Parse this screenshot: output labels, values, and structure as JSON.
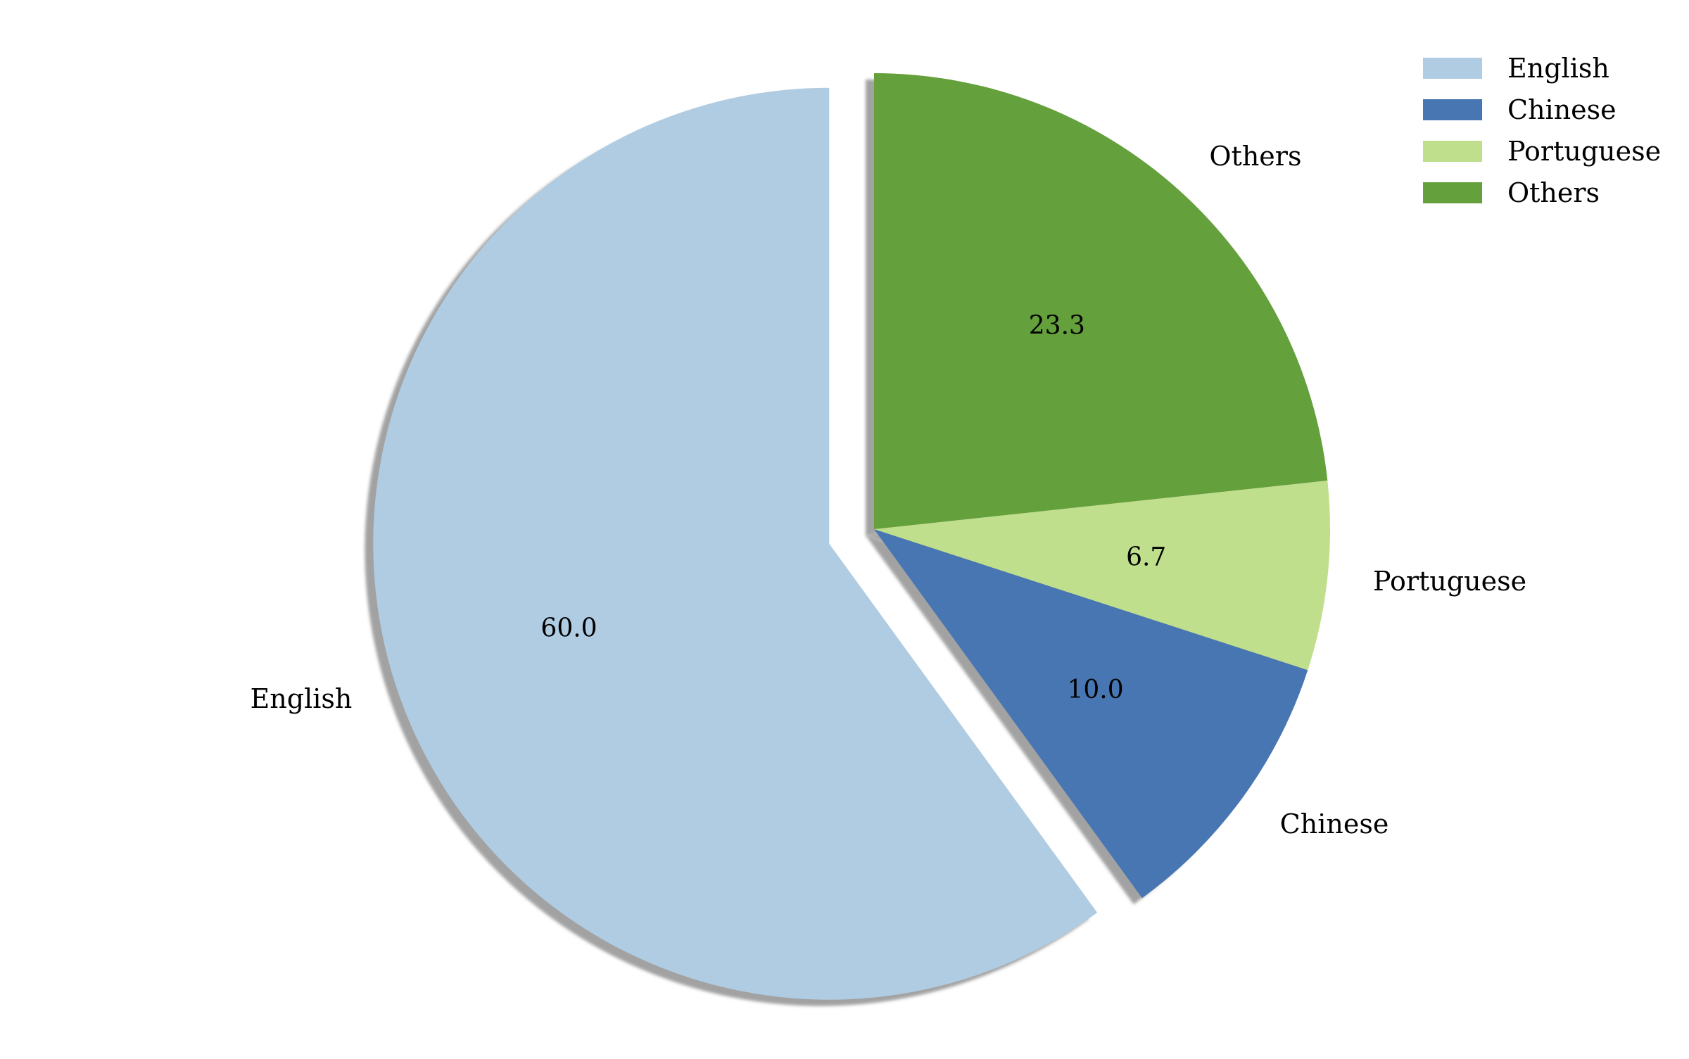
{
  "chart_data": {
    "type": "pie",
    "title": "",
    "slices": [
      {
        "label": "English",
        "value": 60.0,
        "display": "60.0",
        "color": "#b0cce2",
        "exploded": true
      },
      {
        "label": "Chinese",
        "value": 10.0,
        "display": "10.0",
        "color": "#4876b2",
        "exploded": false
      },
      {
        "label": "Portuguese",
        "value": 6.7,
        "display": "6.7",
        "color": "#c0df8d",
        "exploded": false
      },
      {
        "label": "Others",
        "value": 23.3,
        "display": "23.3",
        "color": "#64a03c",
        "exploded": false
      }
    ],
    "start_angle_deg": 90,
    "direction": "counterclockwise",
    "shadow": true,
    "legend": {
      "placement": "top-right",
      "entries": [
        "English",
        "Chinese",
        "Portuguese",
        "Others"
      ]
    }
  }
}
